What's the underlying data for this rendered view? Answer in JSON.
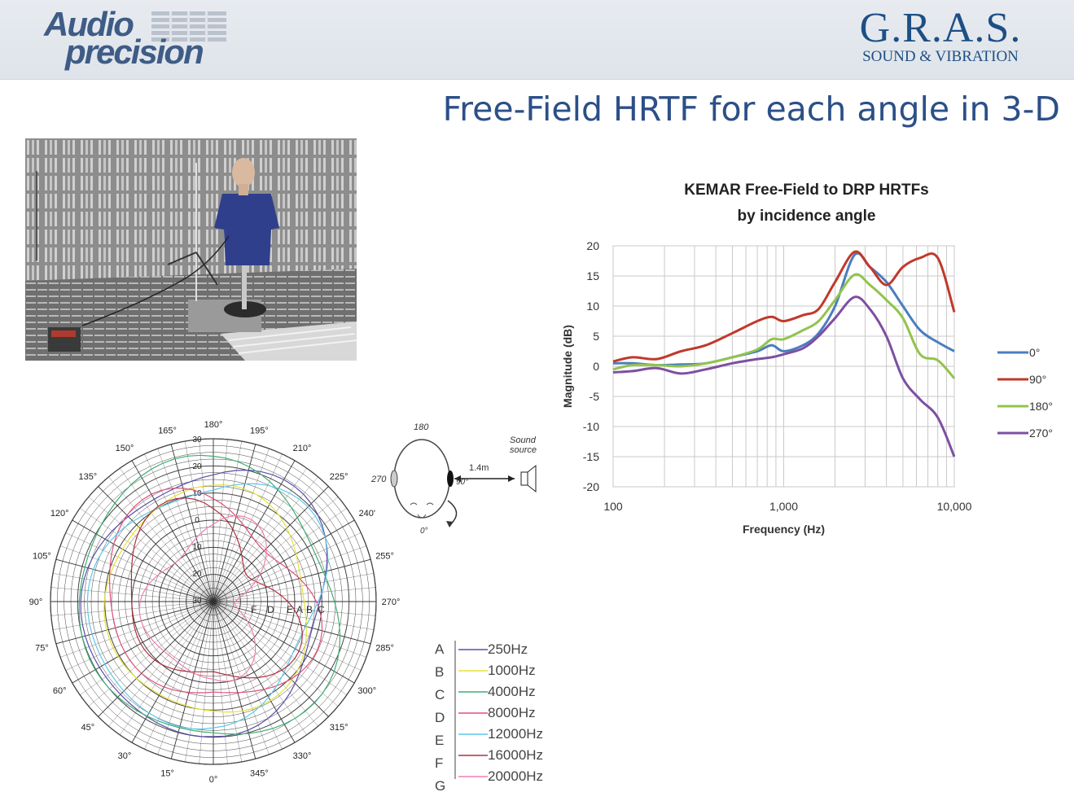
{
  "header": {
    "logo_left_line1": "Audio",
    "logo_left_line2": "precision",
    "logo_right_main": "G.R.A.S.",
    "logo_right_sub": "SOUND & VIBRATION"
  },
  "slide": {
    "title": "Free-Field HRTF for each angle in 3-D"
  },
  "head_diagram": {
    "top_label": "180",
    "left_label": "270",
    "right_label": "90°",
    "bottom_label": "0°",
    "distance_label": "1.4m",
    "source_label_line1": "Sound",
    "source_label_line2": "source"
  },
  "polar_chart": {
    "angle_labels": [
      "0°",
      "15°",
      "30°",
      "45°",
      "60°",
      "75°",
      "90°",
      "105°",
      "120°",
      "135°",
      "150°",
      "165°",
      "180°",
      "195°",
      "210°",
      "225°",
      "240'",
      "255°",
      "270°",
      "285°",
      "300°",
      "315°",
      "330°",
      "345°"
    ],
    "ring_labels": [
      "30",
      "20",
      "10",
      "0",
      "10",
      "20",
      "30"
    ],
    "curve_letters": [
      "F",
      "D",
      "E",
      "A",
      "B",
      "C"
    ],
    "legend": [
      {
        "letter": "A",
        "label": "250Hz",
        "color": "#5a4fa8"
      },
      {
        "letter": "B",
        "label": "1000Hz",
        "color": "#e6e23a"
      },
      {
        "letter": "C",
        "label": "4000Hz",
        "color": "#3fae74"
      },
      {
        "letter": "D",
        "label": "8000Hz",
        "color": "#e0507a"
      },
      {
        "letter": "E",
        "label": "12000Hz",
        "color": "#5ec8e8"
      },
      {
        "letter": "F",
        "label": "16000Hz",
        "color": "#b03040"
      },
      {
        "letter": "G",
        "label": "20000Hz",
        "color": "#f080b0"
      }
    ]
  },
  "chart_data": {
    "type": "line",
    "title_line1": "KEMAR Free-Field to DRP HRTFs",
    "title_line2": "by incidence angle",
    "xlabel": "Frequency (Hz)",
    "ylabel": "Magnitude (dB)",
    "x_scale": "log",
    "xlim": [
      100,
      10000
    ],
    "ylim": [
      -20,
      20
    ],
    "x_tick_labels": [
      "100",
      "1,000",
      "10,000"
    ],
    "y_ticks": [
      20,
      15,
      10,
      5,
      0,
      -5,
      -10,
      -15,
      -20
    ],
    "grid": true,
    "legend_position": "right",
    "x": [
      100,
      130,
      180,
      250,
      350,
      500,
      700,
      850,
      1000,
      1300,
      1600,
      2000,
      2600,
      3200,
      4000,
      5000,
      6300,
      8000,
      10000
    ],
    "series": [
      {
        "name": "0°",
        "color": "#4a7ebf",
        "values": [
          0.5,
          0.5,
          0.2,
          0.3,
          0.5,
          1.5,
          2.5,
          3.5,
          2.5,
          3.5,
          5.5,
          10,
          18.5,
          16.5,
          14,
          10,
          6,
          4,
          2.5
        ]
      },
      {
        "name": "90°",
        "color": "#c0392b",
        "values": [
          0.8,
          1.5,
          1.2,
          2.5,
          3.5,
          5.5,
          7.5,
          8.2,
          7.5,
          8.5,
          9.5,
          14,
          19,
          16.5,
          13.5,
          16.5,
          18,
          18,
          9
        ]
      },
      {
        "name": "180°",
        "color": "#92c44c",
        "values": [
          -0.5,
          0.2,
          0.2,
          0,
          0.5,
          1.5,
          2.8,
          4.5,
          4.5,
          6,
          7.5,
          11,
          15.2,
          13.5,
          11,
          8,
          2,
          1,
          -2
        ]
      },
      {
        "name": "270°",
        "color": "#7d4fa2",
        "values": [
          -1,
          -0.8,
          -0.3,
          -1.2,
          -0.5,
          0.5,
          1.2,
          1.5,
          2,
          3,
          5,
          8,
          11.5,
          9.5,
          5,
          -2,
          -5.5,
          -8.5,
          -15
        ]
      }
    ]
  }
}
